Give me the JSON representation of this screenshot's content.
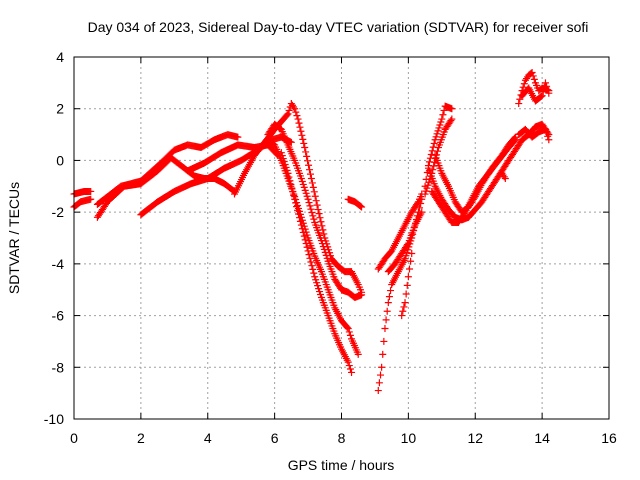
{
  "chart_data": {
    "type": "scatter",
    "title": "Day 034 of 2023, Sidereal Day-to-day VTEC variation (SDTVAR) for receiver sofi",
    "xlabel": "GPS time / hours",
    "ylabel": "SDTVAR / TECUs",
    "xlim": [
      0,
      16
    ],
    "ylim": [
      -10,
      4
    ],
    "xticks": [
      0,
      2,
      4,
      6,
      8,
      10,
      12,
      14,
      16
    ],
    "yticks": [
      -10,
      -8,
      -6,
      -4,
      -2,
      0,
      2,
      4
    ],
    "grid": true,
    "marker": "plus",
    "color": "#ff0000",
    "tracks": [
      [
        [
          0.0,
          -1.3
        ],
        [
          0.3,
          -1.2
        ],
        [
          0.5,
          -1.2
        ]
      ],
      [
        [
          0.0,
          -1.8
        ],
        [
          0.2,
          -1.6
        ],
        [
          0.5,
          -1.5
        ]
      ],
      [
        [
          0.7,
          -2.2
        ],
        [
          1.0,
          -1.6
        ],
        [
          1.5,
          -1.0
        ],
        [
          2.0,
          -0.9
        ],
        [
          2.5,
          -0.4
        ],
        [
          2.9,
          0.1
        ],
        [
          3.3,
          -0.3
        ],
        [
          3.6,
          -0.6
        ],
        [
          3.9,
          -0.7
        ],
        [
          4.2,
          -0.7
        ],
        [
          4.5,
          -0.9
        ],
        [
          4.8,
          -1.2
        ]
      ],
      [
        [
          0.7,
          -1.7
        ],
        [
          1.0,
          -1.4
        ],
        [
          1.4,
          -1.0
        ],
        [
          2.0,
          -0.8
        ],
        [
          2.6,
          -0.1
        ],
        [
          3.0,
          0.4
        ],
        [
          3.4,
          0.6
        ],
        [
          3.8,
          0.5
        ],
        [
          4.2,
          0.8
        ],
        [
          4.6,
          1.0
        ],
        [
          4.9,
          0.9
        ]
      ],
      [
        [
          2.0,
          -2.1
        ],
        [
          2.5,
          -1.6
        ],
        [
          3.0,
          -1.2
        ],
        [
          3.5,
          -0.9
        ],
        [
          4.0,
          -0.7
        ],
        [
          4.5,
          -0.3
        ],
        [
          5.0,
          0.0
        ],
        [
          5.5,
          0.4
        ],
        [
          5.9,
          0.8
        ],
        [
          6.2,
          0.9
        ],
        [
          6.5,
          0.7
        ]
      ],
      [
        [
          3.4,
          -0.4
        ],
        [
          3.9,
          -0.1
        ],
        [
          4.4,
          0.3
        ],
        [
          4.9,
          0.6
        ],
        [
          5.4,
          0.5
        ],
        [
          5.8,
          0.6
        ],
        [
          6.1,
          0.2
        ]
      ],
      [
        [
          4.8,
          -1.3
        ],
        [
          5.1,
          -0.5
        ],
        [
          5.4,
          0.2
        ],
        [
          5.7,
          0.7
        ],
        [
          6.0,
          1.2
        ],
        [
          6.2,
          1.5
        ],
        [
          6.4,
          1.8
        ],
        [
          6.5,
          2.2
        ],
        [
          6.6,
          2.0
        ],
        [
          6.7,
          1.6
        ],
        [
          6.9,
          0.5
        ],
        [
          7.1,
          -0.7
        ],
        [
          7.3,
          -1.9
        ],
        [
          7.5,
          -3.0
        ],
        [
          7.7,
          -3.8
        ],
        [
          7.9,
          -4.1
        ],
        [
          8.1,
          -4.3
        ],
        [
          8.3,
          -4.3
        ],
        [
          8.5,
          -4.8
        ],
        [
          8.6,
          -5.1
        ]
      ],
      [
        [
          5.8,
          1.0
        ],
        [
          6.0,
          1.4
        ],
        [
          6.2,
          1.2
        ],
        [
          6.4,
          0.6
        ],
        [
          6.6,
          0.0
        ],
        [
          6.8,
          -0.7
        ],
        [
          7.0,
          -1.5
        ],
        [
          7.2,
          -2.4
        ],
        [
          7.4,
          -3.1
        ],
        [
          7.6,
          -3.9
        ],
        [
          7.8,
          -4.6
        ],
        [
          8.0,
          -5.0
        ],
        [
          8.2,
          -5.1
        ],
        [
          8.4,
          -5.3
        ],
        [
          8.6,
          -5.2
        ]
      ],
      [
        [
          5.5,
          0.4
        ],
        [
          5.8,
          0.8
        ],
        [
          6.0,
          0.6
        ],
        [
          6.2,
          0.0
        ],
        [
          6.4,
          -0.7
        ],
        [
          6.6,
          -1.4
        ],
        [
          6.8,
          -2.2
        ],
        [
          7.0,
          -3.0
        ],
        [
          7.2,
          -3.7
        ],
        [
          7.4,
          -4.3
        ],
        [
          7.6,
          -5.0
        ],
        [
          7.8,
          -5.7
        ],
        [
          8.0,
          -6.2
        ],
        [
          8.2,
          -6.5
        ],
        [
          8.3,
          -6.9
        ],
        [
          8.5,
          -7.5
        ]
      ],
      [
        [
          6.2,
          0.3
        ],
        [
          6.4,
          -0.5
        ],
        [
          6.6,
          -1.5
        ],
        [
          6.8,
          -2.5
        ],
        [
          7.0,
          -3.5
        ],
        [
          7.2,
          -4.5
        ],
        [
          7.4,
          -5.3
        ],
        [
          7.6,
          -6.0
        ],
        [
          7.8,
          -6.7
        ],
        [
          8.0,
          -7.3
        ],
        [
          8.2,
          -7.8
        ],
        [
          8.3,
          -8.2
        ]
      ],
      [
        [
          8.2,
          -1.5
        ],
        [
          8.4,
          -1.6
        ],
        [
          8.6,
          -1.8
        ]
      ],
      [
        [
          9.1,
          -8.9
        ],
        [
          9.2,
          -8.0
        ],
        [
          9.3,
          -6.5
        ],
        [
          9.4,
          -5.5
        ],
        [
          9.5,
          -4.8
        ],
        [
          9.7,
          -4.3
        ],
        [
          9.9,
          -3.8
        ],
        [
          10.1,
          -3.0
        ],
        [
          10.3,
          -2.0
        ],
        [
          10.4,
          -1.5
        ]
      ],
      [
        [
          9.1,
          -4.2
        ],
        [
          9.3,
          -3.8
        ],
        [
          9.5,
          -3.5
        ],
        [
          9.7,
          -3.0
        ],
        [
          9.9,
          -2.5
        ],
        [
          10.1,
          -2.0
        ],
        [
          10.3,
          -1.6
        ],
        [
          10.4,
          -1.3
        ]
      ],
      [
        [
          9.4,
          -4.3
        ],
        [
          9.6,
          -4.0
        ],
        [
          9.8,
          -3.6
        ],
        [
          10.0,
          -3.2
        ],
        [
          10.2,
          -2.5
        ],
        [
          10.4,
          -2.0
        ]
      ],
      [
        [
          9.8,
          -6.0
        ],
        [
          9.9,
          -5.5
        ],
        [
          10.0,
          -4.5
        ],
        [
          10.1,
          -3.6
        ]
      ],
      [
        [
          10.5,
          -1.0
        ],
        [
          10.6,
          -0.2
        ],
        [
          10.8,
          0.8
        ],
        [
          11.0,
          1.6
        ],
        [
          11.1,
          2.1
        ],
        [
          11.3,
          2.0
        ]
      ],
      [
        [
          10.5,
          -1.3
        ],
        [
          10.7,
          -0.5
        ],
        [
          10.9,
          0.5
        ],
        [
          11.1,
          1.2
        ],
        [
          11.3,
          1.6
        ]
      ],
      [
        [
          10.6,
          -0.3
        ],
        [
          10.8,
          -1.0
        ],
        [
          11.0,
          -1.5
        ],
        [
          11.2,
          -1.9
        ],
        [
          11.4,
          -2.2
        ],
        [
          11.6,
          -2.3
        ],
        [
          11.8,
          -2.2
        ],
        [
          12.0,
          -1.9
        ],
        [
          12.2,
          -1.6
        ],
        [
          12.4,
          -1.2
        ],
        [
          12.6,
          -0.8
        ],
        [
          12.8,
          -0.4
        ],
        [
          13.0,
          0.0
        ],
        [
          13.2,
          0.4
        ],
        [
          13.4,
          0.8
        ],
        [
          13.6,
          1.0
        ],
        [
          13.8,
          1.3
        ],
        [
          14.0,
          1.4
        ],
        [
          14.2,
          1.0
        ]
      ],
      [
        [
          10.7,
          -1.2
        ],
        [
          10.9,
          -1.6
        ],
        [
          11.1,
          -2.0
        ],
        [
          11.3,
          -2.4
        ],
        [
          11.5,
          -2.4
        ],
        [
          11.7,
          -2.0
        ],
        [
          11.9,
          -1.5
        ],
        [
          12.1,
          -1.0
        ],
        [
          12.4,
          -0.5
        ],
        [
          12.7,
          0.0
        ],
        [
          13.0,
          0.5
        ],
        [
          13.2,
          0.8
        ]
      ],
      [
        [
          10.8,
          0.2
        ],
        [
          11.0,
          -0.5
        ],
        [
          11.2,
          -1.0
        ],
        [
          11.4,
          -1.6
        ],
        [
          11.6,
          -2.0
        ],
        [
          11.8,
          -1.8
        ],
        [
          12.0,
          -1.4
        ],
        [
          12.2,
          -0.9
        ],
        [
          12.5,
          -0.3
        ],
        [
          12.8,
          0.2
        ],
        [
          13.0,
          0.6
        ],
        [
          13.2,
          0.9
        ]
      ],
      [
        [
          12.8,
          -0.5
        ],
        [
          12.9,
          -0.7
        ]
      ],
      [
        [
          13.3,
          2.2
        ],
        [
          13.4,
          2.7
        ],
        [
          13.5,
          3.1
        ],
        [
          13.6,
          3.3
        ],
        [
          13.7,
          3.4
        ],
        [
          13.8,
          3.0
        ],
        [
          13.9,
          2.7
        ],
        [
          14.0,
          2.8
        ],
        [
          14.2,
          2.7
        ]
      ],
      [
        [
          13.4,
          2.5
        ],
        [
          13.6,
          2.8
        ],
        [
          13.8,
          2.3
        ],
        [
          14.0,
          2.5
        ],
        [
          14.1,
          3.0
        ],
        [
          14.2,
          2.6
        ]
      ],
      [
        [
          13.3,
          1.0
        ],
        [
          13.5,
          1.2
        ],
        [
          13.7,
          0.9
        ],
        [
          13.9,
          1.1
        ],
        [
          14.1,
          1.2
        ],
        [
          14.2,
          0.8
        ]
      ]
    ]
  }
}
